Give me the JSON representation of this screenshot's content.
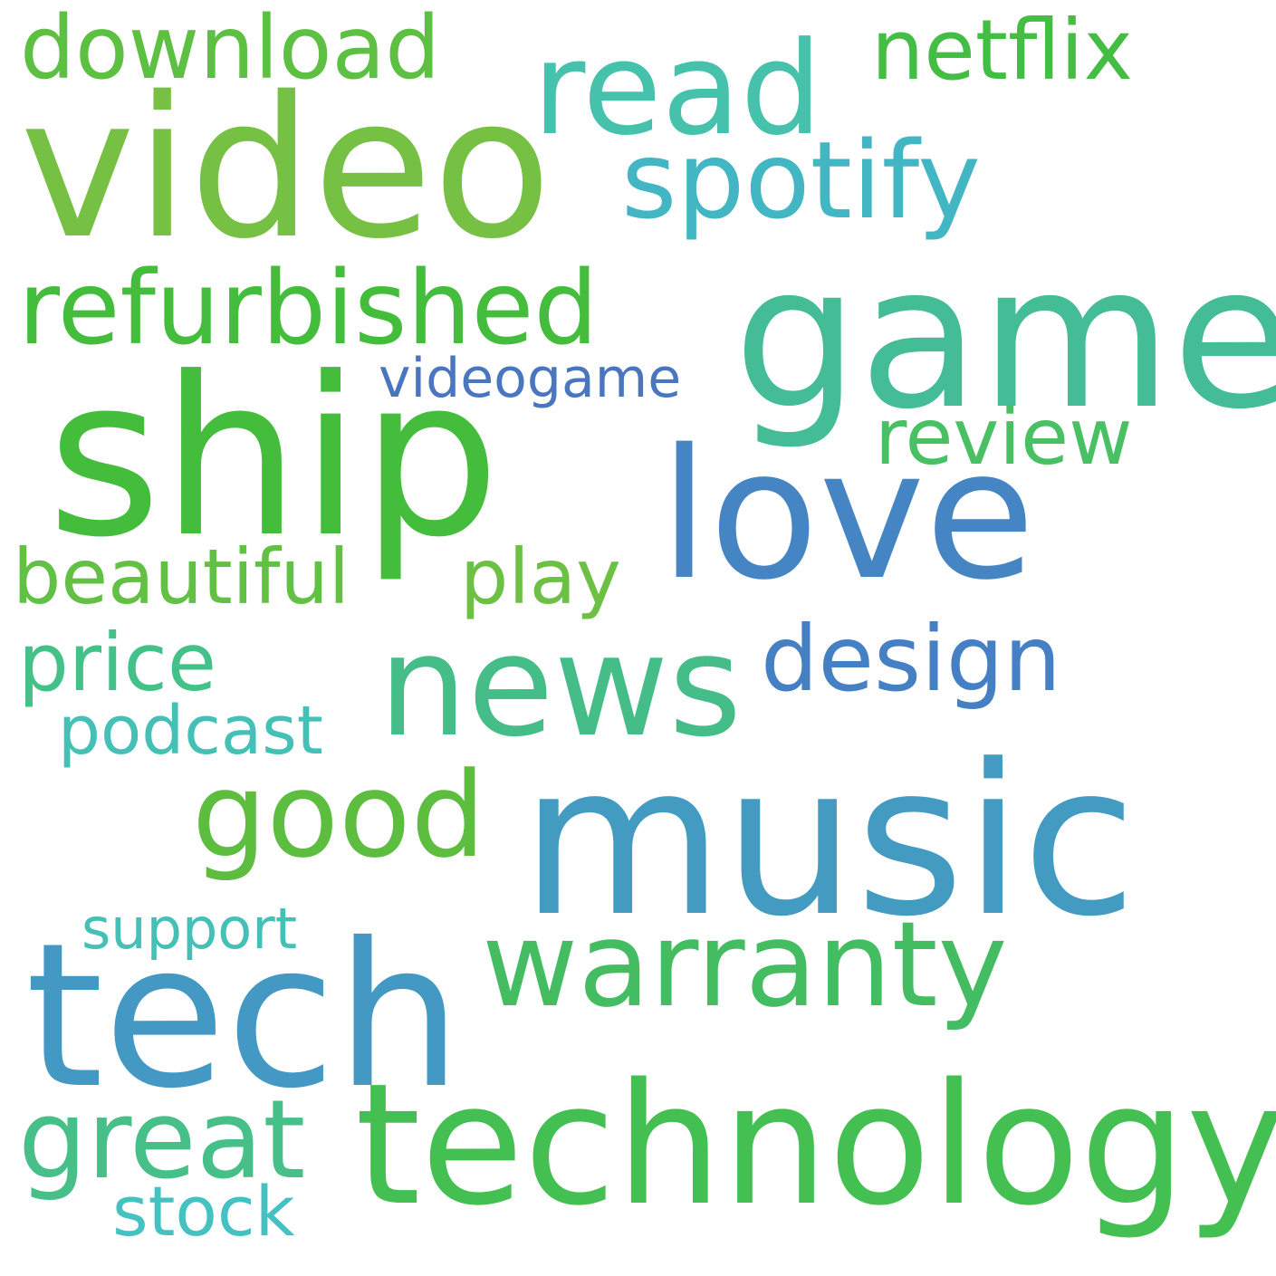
{
  "words": {
    "video": {
      "text": "video",
      "color": "#76c043"
    },
    "ship": {
      "text": "ship",
      "color": "#44bd3d"
    },
    "game": {
      "text": "game",
      "color": "#44bd96"
    },
    "music": {
      "text": "music",
      "color": "#449bc2"
    },
    "tech": {
      "text": "tech",
      "color": "#4498c4"
    },
    "technology": {
      "text": "technology",
      "color": "#44c052"
    },
    "love": {
      "text": "love",
      "color": "#4685c3"
    },
    "read": {
      "text": "read",
      "color": "#46c1ab"
    },
    "spotify": {
      "text": "spotify",
      "color": "#43b6c4"
    },
    "refurbished": {
      "text": "refurbished",
      "color": "#44bd3d"
    },
    "news": {
      "text": "news",
      "color": "#44bd88"
    },
    "warranty": {
      "text": "warranty",
      "color": "#44bd62"
    },
    "good": {
      "text": "good",
      "color": "#5cbd3f"
    },
    "design": {
      "text": "design",
      "color": "#4680c4"
    },
    "download": {
      "text": "download",
      "color": "#5dc043"
    },
    "netflix": {
      "text": "netflix",
      "color": "#44bd44"
    },
    "review": {
      "text": "review",
      "color": "#49c063"
    },
    "beautiful": {
      "text": "beautiful",
      "color": "#62c044"
    },
    "play": {
      "text": "play",
      "color": "#6cc043"
    },
    "price": {
      "text": "price",
      "color": "#44c188"
    },
    "podcast": {
      "text": "podcast",
      "color": "#44c0b6"
    },
    "videogame": {
      "text": "videogame",
      "color": "#4a76c0"
    },
    "support": {
      "text": "support",
      "color": "#44c0b6"
    },
    "great": {
      "text": "great",
      "color": "#46c088"
    },
    "stock": {
      "text": "stock",
      "color": "#45c1c1"
    }
  }
}
